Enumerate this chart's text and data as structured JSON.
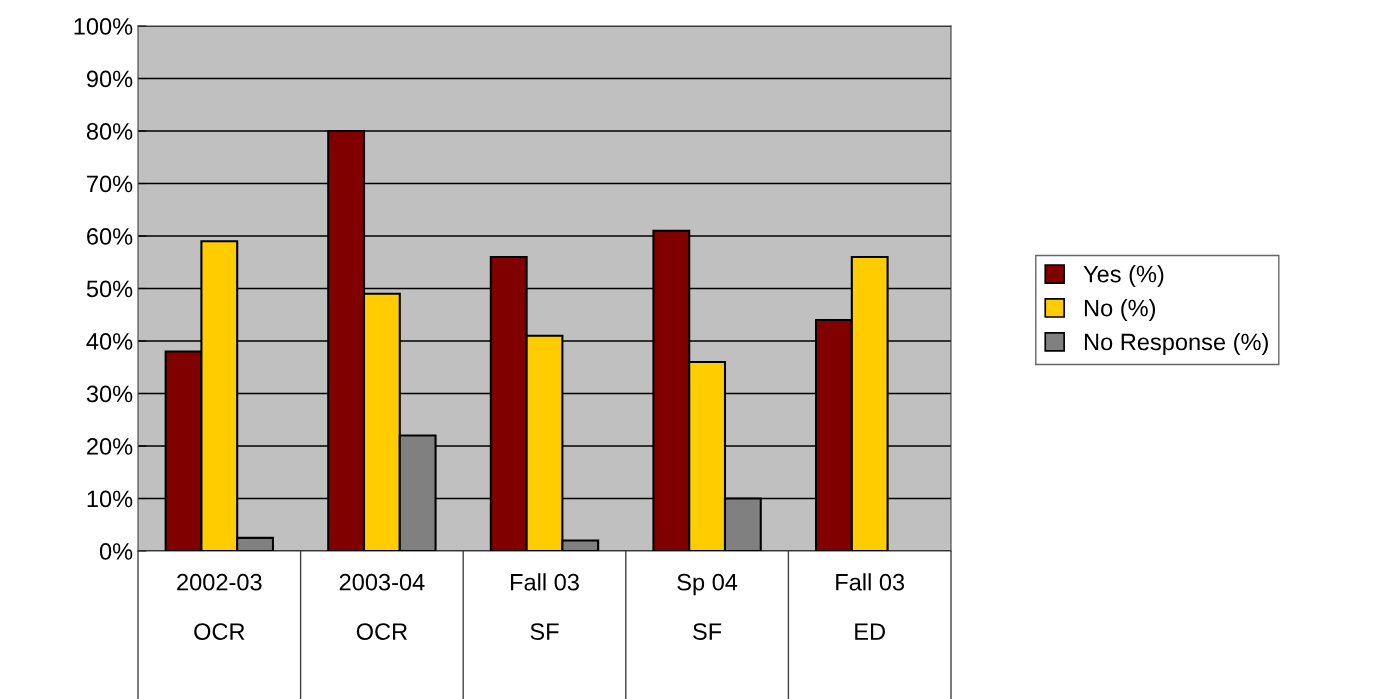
{
  "chart_data": {
    "type": "bar",
    "categories": [
      "2002-03\nOCR",
      "2003-04\nOCR",
      "Fall 03\nSF",
      "Sp 04\nSF",
      "Fall 03\nED"
    ],
    "series": [
      {
        "name": "Yes (%)",
        "color": "#800000",
        "values": [
          38,
          80,
          56,
          61,
          44
        ]
      },
      {
        "name": "No (%)",
        "color": "#ffcc00",
        "values": [
          59,
          49,
          41,
          36,
          56
        ]
      },
      {
        "name": "No Response (%)",
        "color": "#808080",
        "values": [
          2.5,
          22,
          2,
          10,
          null
        ]
      }
    ],
    "ylim": [
      0,
      100
    ],
    "yticks": [
      {
        "value": 0,
        "label": "0%"
      },
      {
        "value": 10,
        "label": "10%"
      },
      {
        "value": 20,
        "label": "20%"
      },
      {
        "value": 30,
        "label": "30%"
      },
      {
        "value": 40,
        "label": "40%"
      },
      {
        "value": 50,
        "label": "50%"
      },
      {
        "value": 60,
        "label": "60%"
      },
      {
        "value": 70,
        "label": "70%"
      },
      {
        "value": 80,
        "label": "80%"
      },
      {
        "value": 90,
        "label": "90%"
      },
      {
        "value": 100,
        "label": "100%"
      }
    ],
    "grid": "y",
    "legend": "right"
  }
}
